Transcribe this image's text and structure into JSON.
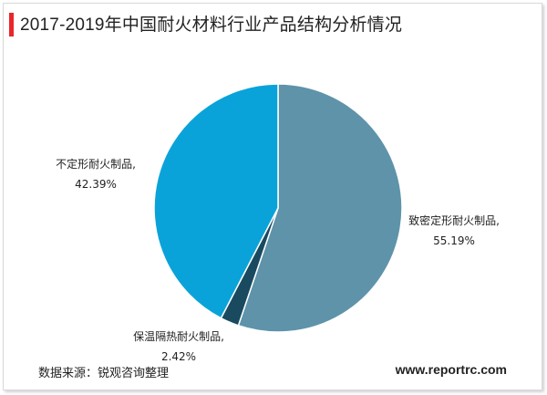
{
  "title": "2017-2019年中国耐火材料行业产品结构分析情况",
  "source": "数据来源：锐观咨询整理",
  "website": "www.reportrc.com",
  "chart_data": {
    "type": "pie",
    "slices": [
      {
        "name": "致密定形耐火制品,",
        "value": 55.19,
        "display": "55.19%",
        "color": "#5e93aa"
      },
      {
        "name": "保温隔热耐火制品,",
        "value": 2.42,
        "display": "2.42%",
        "color": "#1a4a60"
      },
      {
        "name": "不定形耐火制品,",
        "value": 42.39,
        "display": "42.39%",
        "color": "#0aa3d9"
      }
    ]
  }
}
